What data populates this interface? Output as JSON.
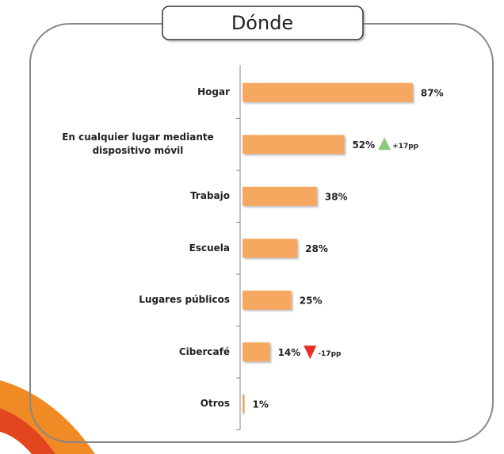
{
  "chart_data": {
    "type": "bar",
    "orientation": "horizontal",
    "title": "Dónde",
    "categories": [
      "Hogar",
      "En cualquier lugar mediante dispositivo móvil",
      "Trabajo",
      "Escuela",
      "Lugares públicos",
      "Cibercafé",
      "Otros"
    ],
    "values": [
      87,
      52,
      38,
      28,
      25,
      14,
      1
    ],
    "value_labels": [
      "87%",
      "52%",
      "38%",
      "28%",
      "25%",
      "14%",
      "1%"
    ],
    "color": "#f6a861",
    "changes": [
      null,
      {
        "value": 17,
        "label": "+17pp"
      },
      null,
      null,
      null,
      {
        "value": -17,
        "label": "-17pp"
      },
      null
    ],
    "up_color": "#8fc97a",
    "down_color": "#e8302a"
  }
}
